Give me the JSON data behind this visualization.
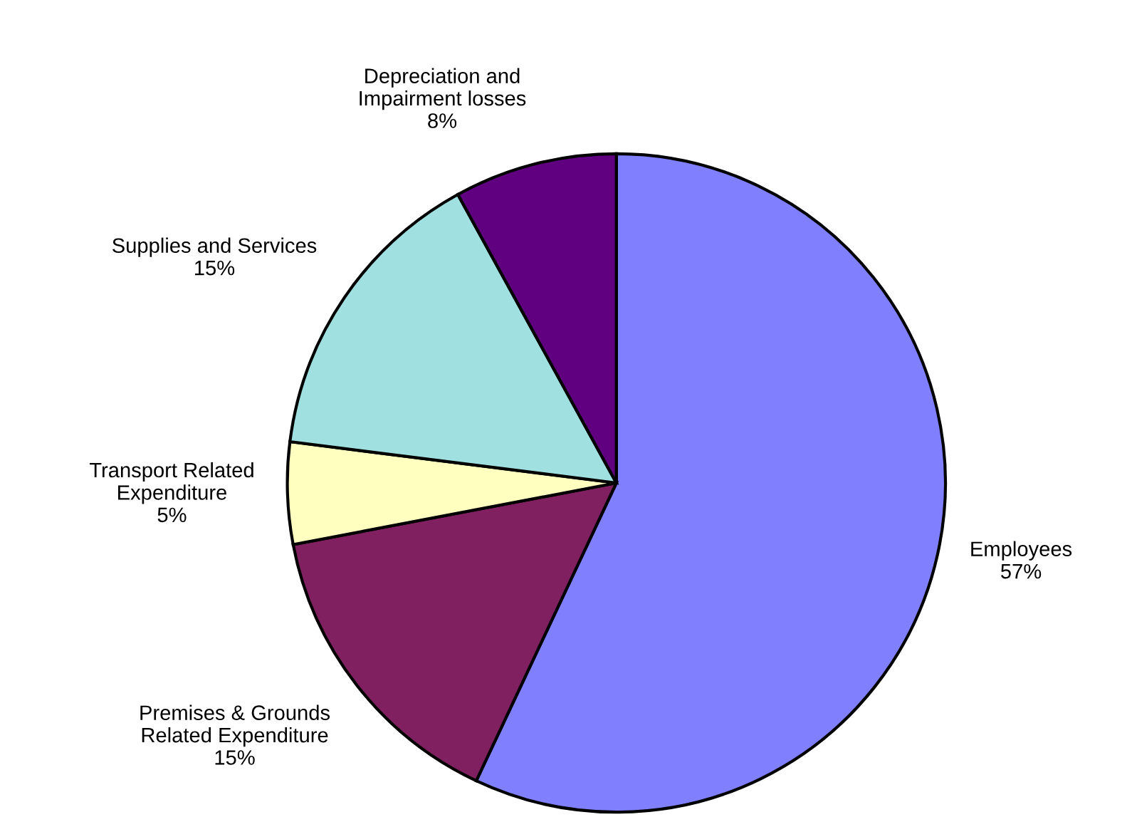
{
  "chart_data": {
    "type": "pie",
    "categories": [
      "Employees",
      "Premises & Grounds\nRelated Expenditure",
      "Transport Related\nExpenditure",
      "Supplies and Services",
      "Depreciation and\nImpairment losses"
    ],
    "values": [
      57,
      15,
      5,
      15,
      8
    ],
    "colors": [
      "#8080ff",
      "#802060",
      "#ffffc0",
      "#a0e0e0",
      "#600080"
    ],
    "value_labels": [
      "57%",
      "15%",
      "5%",
      "15%",
      "8%"
    ]
  }
}
